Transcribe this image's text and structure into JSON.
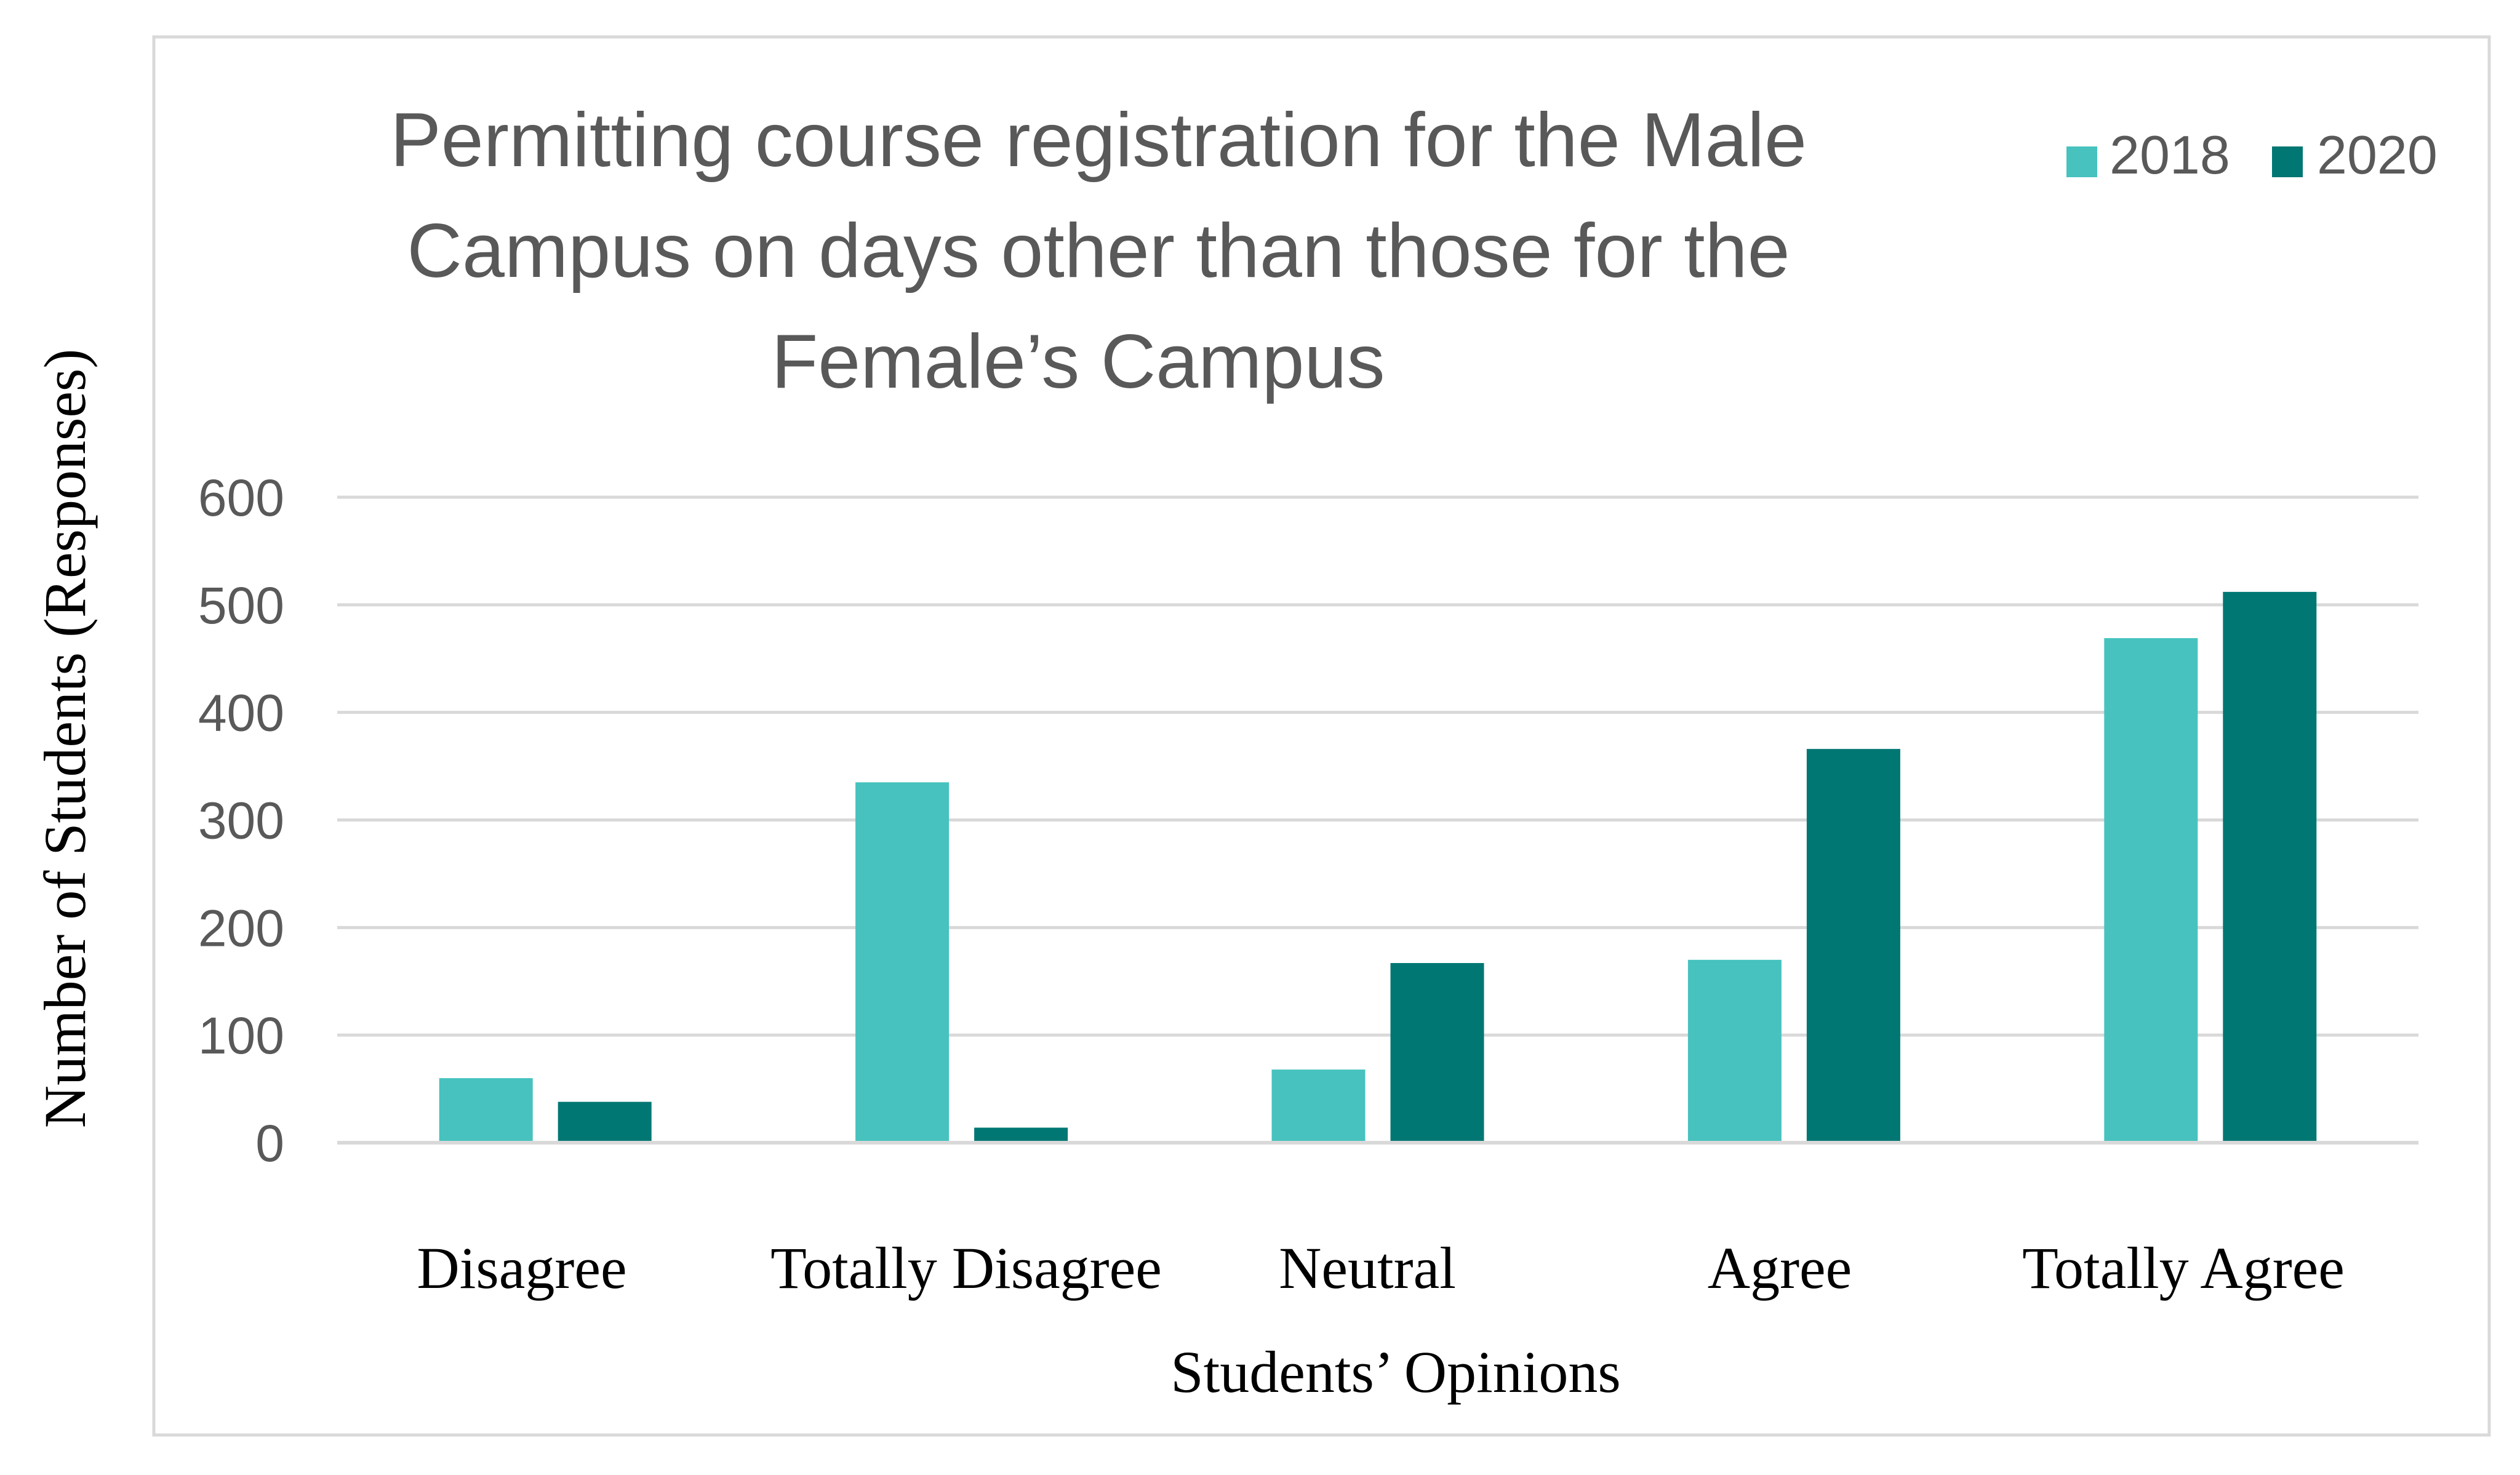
{
  "chart_data": {
    "type": "bar",
    "title_lines": [
      "Permitting course registration for the Male",
      "Campus on days other than those for the",
      "Female’s Campus"
    ],
    "xlabel": "Students’ Opinions",
    "ylabel": "Number of Students (Responses)",
    "categories": [
      "Disagree",
      "Totally Disagree",
      "Neutral",
      "Agree",
      "Totally Agree"
    ],
    "series": [
      {
        "name": "2018",
        "color": "#47C2BE",
        "values": [
          60,
          335,
          68,
          170,
          469
        ]
      },
      {
        "name": "2020",
        "color": "#007773",
        "values": [
          38,
          14,
          167,
          366,
          512
        ]
      }
    ],
    "ylim": [
      0,
      600
    ],
    "yticks": [
      "0",
      "100",
      "200",
      "300",
      "400",
      "500",
      "600"
    ],
    "grid": true,
    "legend_position": "top-right"
  }
}
